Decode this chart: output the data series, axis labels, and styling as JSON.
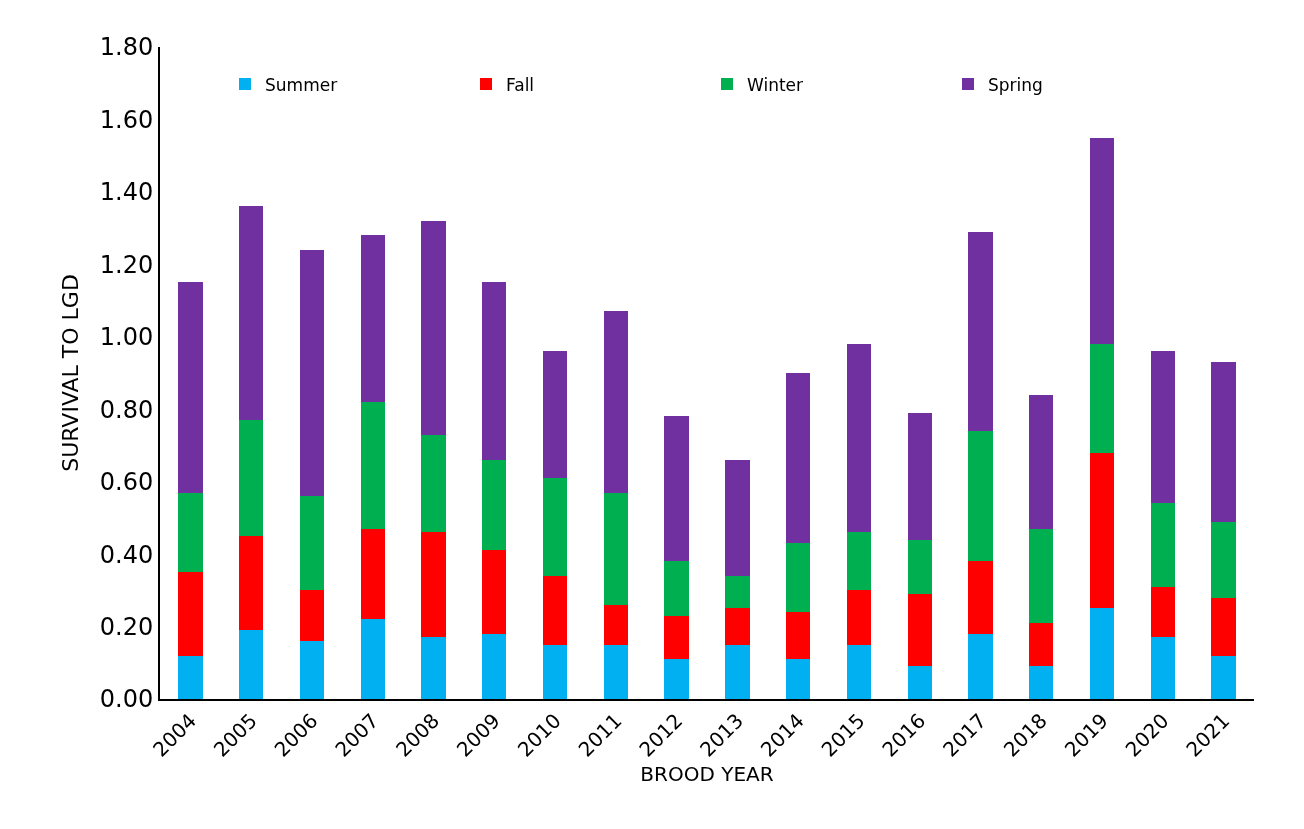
{
  "chart_data": {
    "type": "bar",
    "stacked": true,
    "xlabel": "BROOD YEAR",
    "ylabel": "SURVIVAL TO LGD",
    "categories": [
      "2004",
      "2005",
      "2006",
      "2007",
      "2008",
      "2009",
      "2010",
      "2011",
      "2012",
      "2013",
      "2014",
      "2015",
      "2016",
      "2017",
      "2018",
      "2019",
      "2020",
      "2021"
    ],
    "series": [
      {
        "name": "Summer",
        "color": "#00b0f0",
        "values": [
          0.12,
          0.19,
          0.16,
          0.22,
          0.17,
          0.18,
          0.15,
          0.15,
          0.11,
          0.15,
          0.11,
          0.15,
          0.09,
          0.18,
          0.09,
          0.25,
          0.17,
          0.12
        ]
      },
      {
        "name": "Fall",
        "color": "#ff0000",
        "values": [
          0.23,
          0.26,
          0.14,
          0.25,
          0.29,
          0.23,
          0.19,
          0.11,
          0.12,
          0.1,
          0.13,
          0.15,
          0.2,
          0.2,
          0.12,
          0.43,
          0.14,
          0.16
        ]
      },
      {
        "name": "Winter",
        "color": "#00b050",
        "values": [
          0.22,
          0.32,
          0.26,
          0.35,
          0.27,
          0.25,
          0.27,
          0.31,
          0.15,
          0.09,
          0.19,
          0.16,
          0.15,
          0.36,
          0.26,
          0.3,
          0.23,
          0.21
        ]
      },
      {
        "name": "Spring",
        "color": "#7030a0",
        "values": [
          0.58,
          0.59,
          0.68,
          0.46,
          0.59,
          0.49,
          0.35,
          0.5,
          0.4,
          0.32,
          0.47,
          0.52,
          0.35,
          0.55,
          0.37,
          0.57,
          0.42,
          0.44
        ]
      }
    ],
    "ylim": [
      0,
      1.8
    ],
    "yticks": [
      {
        "value": 0,
        "label": "0.00"
      },
      {
        "value": 0.2,
        "label": "0.20"
      },
      {
        "value": 0.4,
        "label": "0.40"
      },
      {
        "value": 0.6,
        "label": "0.60"
      },
      {
        "value": 0.8,
        "label": "0.80"
      },
      {
        "value": 1.0,
        "label": "1.00"
      },
      {
        "value": 1.2,
        "label": "1.20"
      },
      {
        "value": 1.4,
        "label": "1.40"
      },
      {
        "value": 1.6,
        "label": "1.60"
      },
      {
        "value": 1.8,
        "label": "1.80"
      }
    ],
    "legend": "top"
  }
}
